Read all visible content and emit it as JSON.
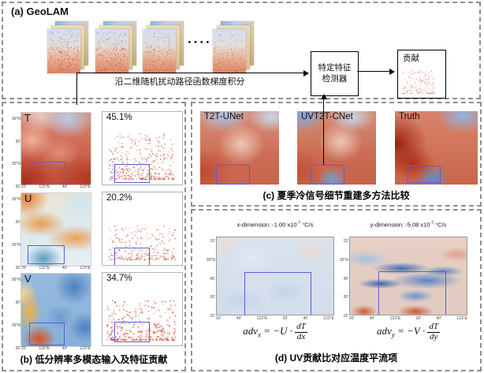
{
  "panel_a": {
    "title": "(a) GeoLAM",
    "integration_label": "沿二维随机扰动路径函数梯度积分",
    "ellipsis": "····",
    "detector_line1": "特定特征",
    "detector_line2": "检测器",
    "contribution_label": "贡献"
  },
  "panel_b": {
    "caption": "(b) 低分辨率多模态输入及特征贡献",
    "rows": [
      {
        "variable": "T",
        "contribution_pct": "45.1%"
      },
      {
        "variable": "U",
        "contribution_pct": "20.2%"
      },
      {
        "variable": "V",
        "contribution_pct": "34.7%"
      }
    ],
    "map_y_ticks": [
      "36°N",
      "30'",
      "35°N",
      "30'"
    ],
    "map_x_ticks": [
      "20'",
      "122°E",
      "40'",
      "123°E"
    ]
  },
  "panel_c": {
    "caption": "(c) 夏季冷信号细节重建多方法比较",
    "methods": [
      "T2T-UNet",
      "UVT2T-CNet",
      "Truth"
    ]
  },
  "panel_d": {
    "caption": "(d) UV贡献比对应温度平流项",
    "maps": [
      {
        "title_prefix": "x-dimension: -1.00 x10",
        "title_exp": "-7",
        "title_unit": " °C/s"
      },
      {
        "title_prefix": "y-dimension: -5.08 x10",
        "title_exp": "-7",
        "title_unit": " °C/s"
      }
    ],
    "map_y_ticks": [
      "15'",
      "35°N",
      "45'",
      "30'",
      "15'"
    ],
    "map_x_ticks": [
      "20'",
      "40'",
      "122°E",
      "20'",
      "40'",
      "123°E"
    ],
    "equations": [
      {
        "lhs": "adv",
        "sub": "x",
        "rel": "=",
        "rhs": "−U ·",
        "num": "dT",
        "den": "dx"
      },
      {
        "lhs": "adv",
        "sub": "y",
        "rel": "=",
        "rhs": "−V ·",
        "num": "dT",
        "den": "dy"
      }
    ]
  },
  "colors": {
    "selection_rect": "#5c5cd6",
    "panel_border": "#8f8f8f",
    "scatter_dot": "#c8402a"
  }
}
